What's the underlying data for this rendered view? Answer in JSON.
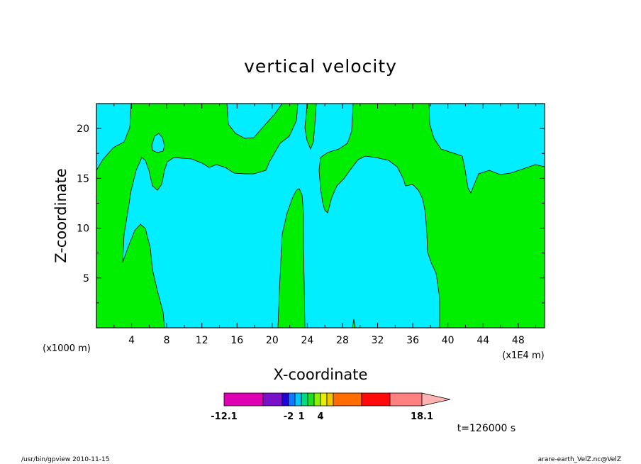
{
  "chart_data": {
    "type": "contour",
    "title": "vertical velocity",
    "xlabel": "X-coordinate",
    "ylabel": "Z-coordinate",
    "x_unit": "(x1E4 m)",
    "y_unit": "(x1000 m)",
    "xlim": [
      0,
      51
    ],
    "ylim": [
      0,
      22.5
    ],
    "x_ticks": [
      "4",
      "8",
      "12",
      "16",
      "20",
      "24",
      "28",
      "32",
      "36",
      "40",
      "44",
      "48"
    ],
    "y_ticks": [
      "5",
      "10",
      "15",
      "20"
    ],
    "colorbar": {
      "labels": [
        "-12.1",
        "-2",
        "1",
        "4",
        "18.1"
      ],
      "colors": [
        "#e000b4",
        "#7a10c8",
        "#1e00e0",
        "#1478ff",
        "#00c8ff",
        "#00dc82",
        "#1ede1e",
        "#8cf000",
        "#e6f000",
        "#f0c800",
        "#ff6c00",
        "#ff0a0a",
        "#ff8080",
        "#ffb4b4"
      ]
    },
    "fill_colors": {
      "background": "#00eeff",
      "positive": "#00ee00"
    },
    "time_label": "t=126000 s"
  },
  "footer": {
    "left": "/usr/bin/gpview  2010-11-15",
    "right": "arare-earth_VelZ.nc@VelZ"
  }
}
